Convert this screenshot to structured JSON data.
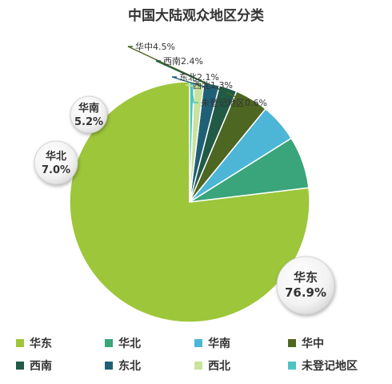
{
  "chart_data": {
    "type": "pie",
    "title": "中国大陆观众地区分类",
    "colors": {
      "华东": "#9dc63a",
      "华北": "#3aa57a",
      "华南": "#4db6d6",
      "华中": "#4d6621",
      "西南": "#215a45",
      "东北": "#1f6077",
      "西北": "#c9e29d",
      "未登记地区": "#4fc3c4"
    },
    "slices": [
      {
        "label": "华东",
        "value": 76.9,
        "display": "76.9%"
      },
      {
        "label": "华北",
        "value": 7.0,
        "display": "7.0%"
      },
      {
        "label": "华南",
        "value": 5.2,
        "display": "5.2%"
      },
      {
        "label": "华中",
        "value": 4.5,
        "display": "4.5%"
      },
      {
        "label": "西南",
        "value": 2.4,
        "display": "2.4%"
      },
      {
        "label": "东北",
        "value": 2.1,
        "display": "2.1%"
      },
      {
        "label": "西北",
        "value": 1.3,
        "display": "1.3%"
      },
      {
        "label": "未登记地区",
        "value": 0.6,
        "display": "0.6%"
      }
    ],
    "legend": [
      "华东",
      "华北",
      "华南",
      "华中",
      "西南",
      "东北",
      "西北",
      "未登记地区"
    ],
    "legend_position": "bottom"
  }
}
